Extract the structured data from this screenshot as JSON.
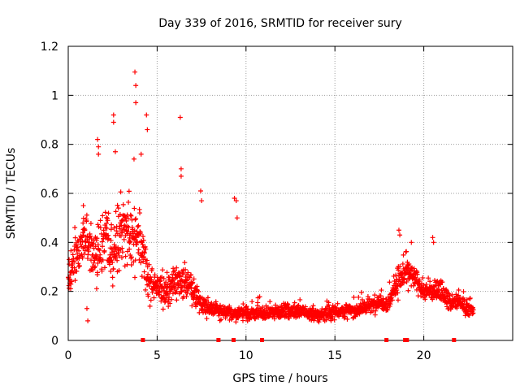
{
  "chart_data": {
    "type": "scatter",
    "title": "Day 339 of 2016, SRMTID for receiver sury",
    "xlabel": "GPS time / hours",
    "ylabel": "SRMTID / TECUs",
    "xlim": [
      0,
      25
    ],
    "ylim": [
      0,
      1.2
    ],
    "grid": true,
    "legend": "none",
    "marker": "plus",
    "color": "#ff0000",
    "x_ticks": [
      0,
      5,
      10,
      15,
      20
    ],
    "x_tick_labels": [
      "0",
      "5",
      "10",
      "15",
      "20"
    ],
    "y_ticks": [
      0,
      0.2,
      0.4,
      0.6,
      0.8,
      1.0,
      1.2
    ],
    "y_tick_labels": [
      "0",
      "0.2",
      "0.4",
      "0.6",
      "0.8",
      "1",
      "1.2"
    ],
    "level_profile": {
      "x": [
        0,
        0.5,
        1,
        1.5,
        2,
        2.5,
        3,
        3.5,
        4,
        4.5,
        5,
        5.5,
        6,
        6.5,
        7,
        7.5,
        8,
        9,
        10,
        11,
        12,
        13,
        14,
        15,
        16,
        17,
        17.5,
        18,
        18.5,
        19,
        19.5,
        20,
        20.5,
        21,
        21.5,
        22,
        22.5,
        22.8
      ],
      "median": [
        0.24,
        0.36,
        0.42,
        0.34,
        0.42,
        0.36,
        0.46,
        0.44,
        0.4,
        0.24,
        0.22,
        0.2,
        0.24,
        0.25,
        0.2,
        0.15,
        0.13,
        0.11,
        0.11,
        0.11,
        0.12,
        0.12,
        0.1,
        0.12,
        0.12,
        0.14,
        0.16,
        0.15,
        0.24,
        0.28,
        0.25,
        0.2,
        0.2,
        0.21,
        0.15,
        0.16,
        0.13,
        0.12
      ],
      "spread": [
        0.12,
        0.16,
        0.18,
        0.18,
        0.22,
        0.22,
        0.22,
        0.22,
        0.2,
        0.12,
        0.12,
        0.12,
        0.14,
        0.12,
        0.1,
        0.06,
        0.06,
        0.05,
        0.05,
        0.05,
        0.05,
        0.05,
        0.05,
        0.05,
        0.05,
        0.05,
        0.06,
        0.06,
        0.1,
        0.1,
        0.08,
        0.07,
        0.07,
        0.07,
        0.06,
        0.06,
        0.05,
        0.05
      ]
    },
    "highlighted_points": [
      {
        "x": 3.75,
        "y": 1.095
      },
      {
        "x": 3.8,
        "y": 1.04
      },
      {
        "x": 3.8,
        "y": 0.97
      },
      {
        "x": 4.4,
        "y": 0.92
      },
      {
        "x": 4.45,
        "y": 0.86
      },
      {
        "x": 2.55,
        "y": 0.92
      },
      {
        "x": 2.55,
        "y": 0.89
      },
      {
        "x": 6.3,
        "y": 0.91
      },
      {
        "x": 1.65,
        "y": 0.82
      },
      {
        "x": 1.7,
        "y": 0.79
      },
      {
        "x": 1.7,
        "y": 0.76
      },
      {
        "x": 2.65,
        "y": 0.77
      },
      {
        "x": 3.7,
        "y": 0.74
      },
      {
        "x": 4.1,
        "y": 0.76
      },
      {
        "x": 6.35,
        "y": 0.7
      },
      {
        "x": 6.35,
        "y": 0.67
      },
      {
        "x": 7.45,
        "y": 0.61
      },
      {
        "x": 7.5,
        "y": 0.57
      },
      {
        "x": 9.35,
        "y": 0.58
      },
      {
        "x": 9.45,
        "y": 0.57
      },
      {
        "x": 9.5,
        "y": 0.5
      },
      {
        "x": 18.6,
        "y": 0.45
      },
      {
        "x": 18.65,
        "y": 0.43
      },
      {
        "x": 20.5,
        "y": 0.42
      },
      {
        "x": 20.55,
        "y": 0.4
      },
      {
        "x": 19.3,
        "y": 0.4
      },
      {
        "x": 0.05,
        "y": 0.33
      },
      {
        "x": 0.85,
        "y": 0.55
      },
      {
        "x": 1.1,
        "y": 0.08
      },
      {
        "x": 1.05,
        "y": 0.13
      }
    ],
    "gap_markers_x": [
      4.2,
      8.45,
      9.3,
      10.9,
      17.9,
      18.95,
      19.05,
      21.7
    ]
  }
}
